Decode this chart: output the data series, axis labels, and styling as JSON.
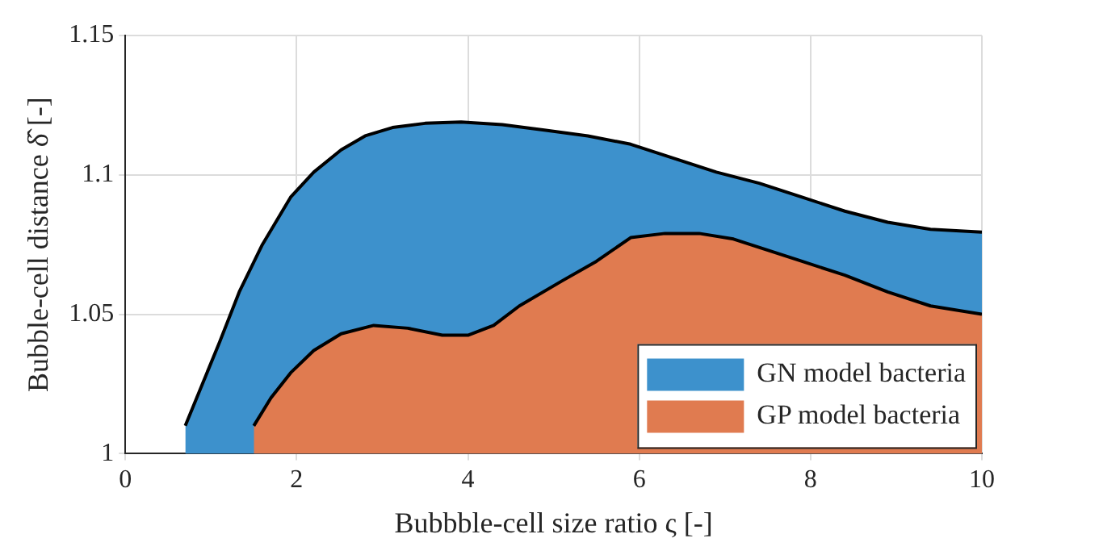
{
  "chart_data": {
    "type": "area",
    "xlabel": "Bubbble-cell size ratio ς [-]",
    "ylabel": "Bubble-cell distance δ̂ [-]",
    "xlim": [
      0,
      10
    ],
    "xticks": [
      0,
      2,
      4,
      6,
      8,
      10
    ],
    "ylim": [
      1,
      1.15
    ],
    "yticks": [
      1,
      1.05,
      1.1,
      1.15
    ],
    "grid": true,
    "legend": "bottom right",
    "series": [
      {
        "name": "GN model bacteria",
        "color": "#3d91cc",
        "x": [
          0.7,
          0.9,
          1.1,
          1.33,
          1.6,
          1.93,
          2.2,
          2.52,
          2.8,
          3.12,
          3.5,
          3.92,
          4.4,
          4.91,
          5.4,
          5.9,
          6.4,
          6.9,
          7.4,
          7.9,
          8.4,
          8.9,
          9.4,
          10
        ],
        "values": [
          1.01,
          1.025,
          1.04,
          1.058,
          1.075,
          1.092,
          1.101,
          1.109,
          1.114,
          1.117,
          1.1185,
          1.119,
          1.118,
          1.116,
          1.114,
          1.111,
          1.106,
          1.101,
          1.097,
          1.092,
          1.087,
          1.083,
          1.0805,
          1.0795
        ]
      },
      {
        "name": "GP model bacteria",
        "color": "#e07b50",
        "x": [
          1.5,
          1.7,
          1.93,
          2.2,
          2.52,
          2.9,
          3.3,
          3.7,
          4.0,
          4.3,
          4.6,
          5.1,
          5.5,
          5.9,
          6.3,
          6.7,
          7.1,
          7.5,
          7.9,
          8.4,
          8.9,
          9.4,
          10
        ],
        "values": [
          1.01,
          1.02,
          1.029,
          1.037,
          1.043,
          1.046,
          1.045,
          1.0425,
          1.0425,
          1.046,
          1.053,
          1.062,
          1.069,
          1.0775,
          1.079,
          1.079,
          1.077,
          1.073,
          1.069,
          1.064,
          1.058,
          1.053,
          1.05
        ]
      }
    ]
  }
}
